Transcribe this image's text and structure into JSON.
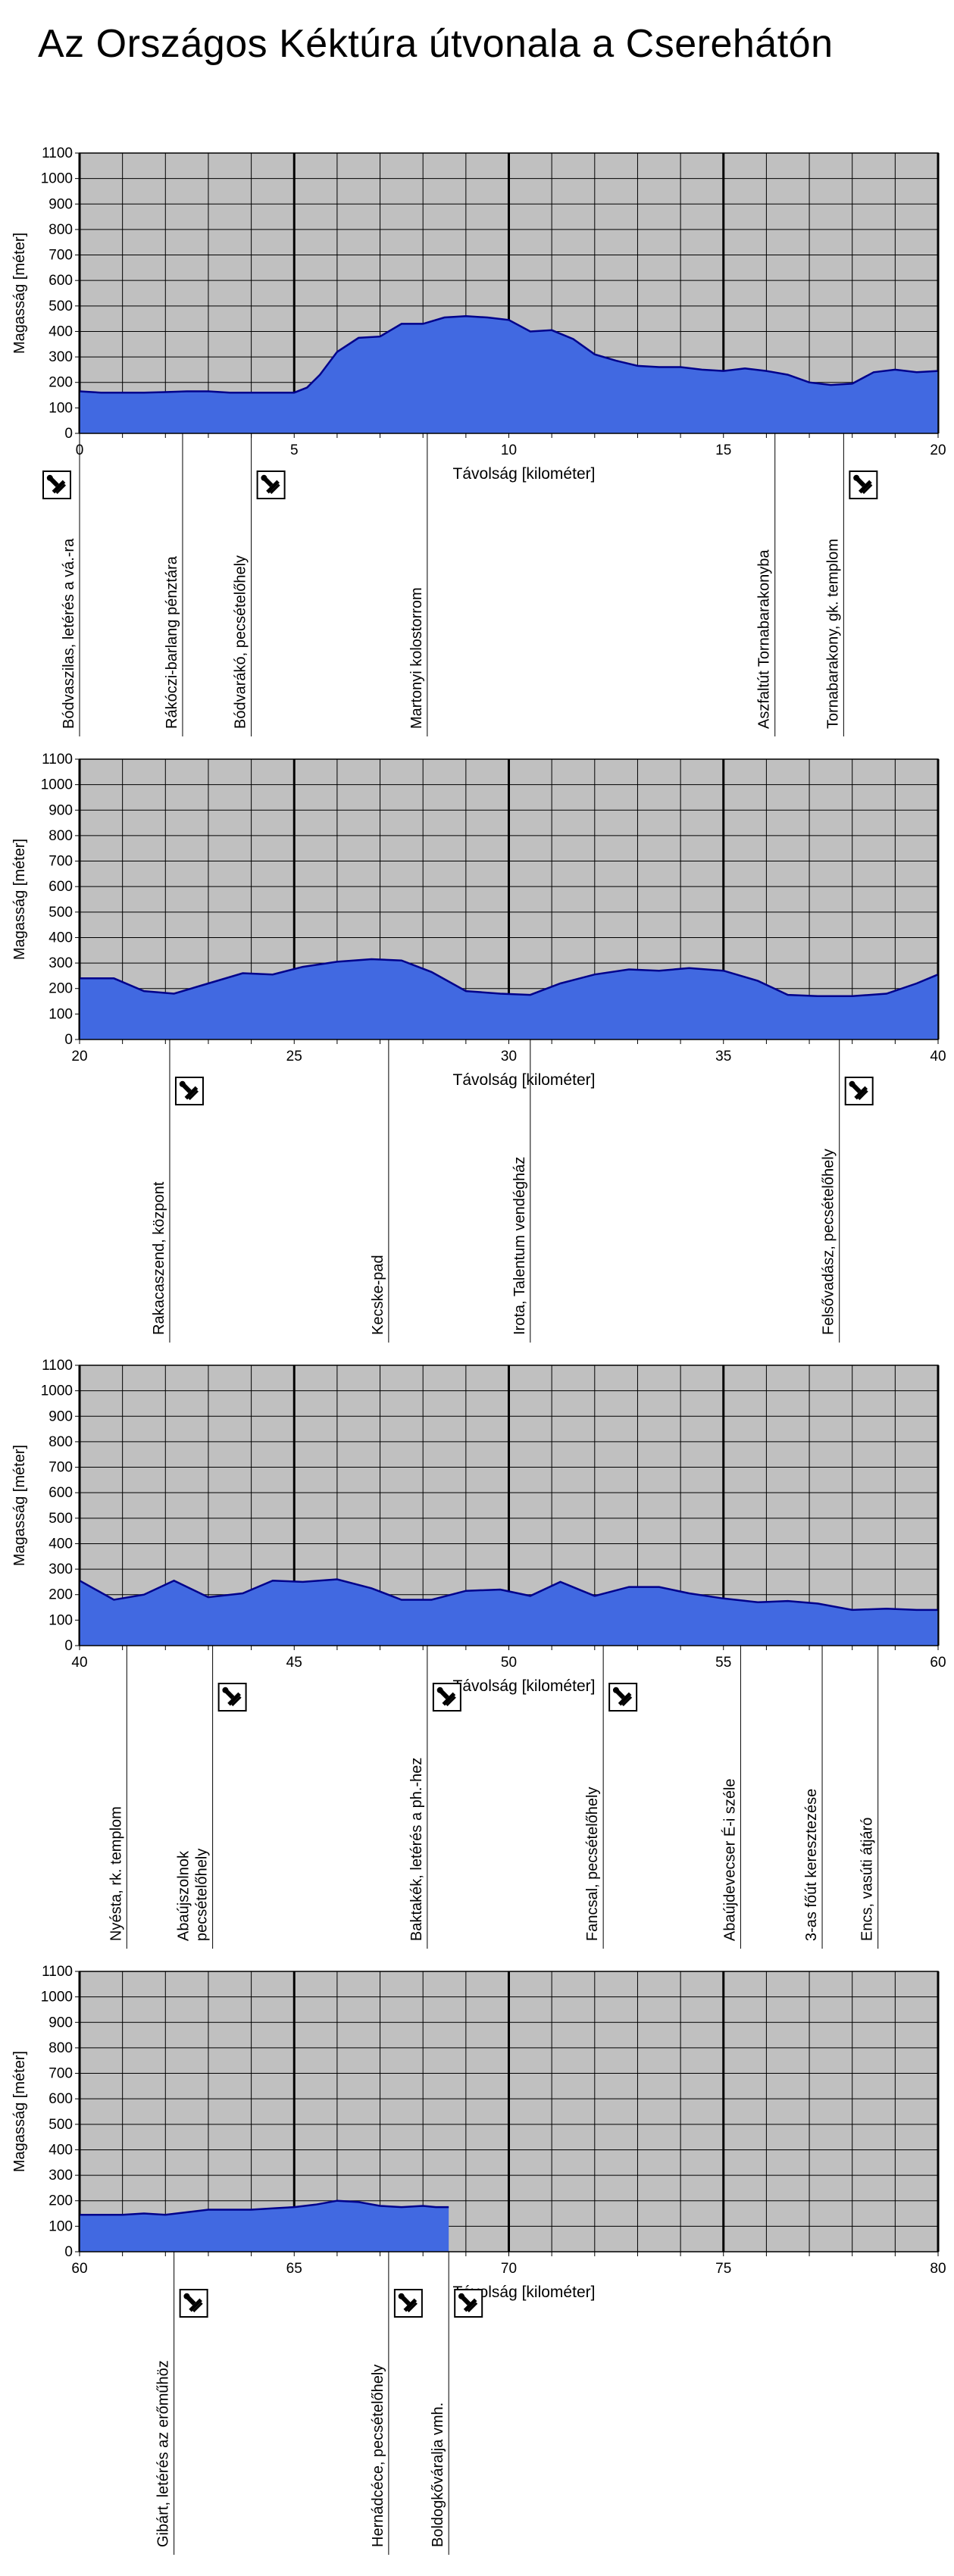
{
  "title": "Az Országos Kéktúra útvonala a Cserehátón",
  "colors": {
    "plot_bg": "#c0c0c0",
    "area_fill": "#4169e1",
    "area_line": "#00008b",
    "grid": "#000000",
    "stamp_border": "#000000"
  },
  "icons": {
    "stamp": "stamp-icon"
  },
  "chart_data": [
    {
      "type": "area",
      "xlabel": "Távolság [kilométer]",
      "ylabel": "Magasság [méter]",
      "xlim": [
        0,
        20
      ],
      "ylim": [
        0,
        1100
      ],
      "xticks": [
        "0",
        "5",
        "10",
        "15",
        "20"
      ],
      "yticks": [
        "0",
        "100",
        "200",
        "300",
        "400",
        "500",
        "600",
        "700",
        "800",
        "900",
        "1000",
        "1100"
      ],
      "grid": true,
      "x": [
        0,
        0.5,
        1,
        1.5,
        2,
        2.5,
        3,
        3.5,
        4,
        4.5,
        5,
        5.3,
        5.6,
        6,
        6.5,
        7,
        7.5,
        8,
        8.5,
        9,
        9.5,
        10,
        10.5,
        11,
        11.5,
        12,
        12.5,
        13,
        13.5,
        14,
        14.5,
        15,
        15.5,
        16,
        16.5,
        17,
        17.5,
        18,
        18.5,
        19,
        19.5,
        20
      ],
      "y": [
        165,
        160,
        160,
        160,
        162,
        165,
        165,
        160,
        160,
        160,
        160,
        180,
        230,
        320,
        375,
        380,
        430,
        430,
        455,
        460,
        455,
        445,
        400,
        405,
        370,
        310,
        285,
        265,
        260,
        260,
        250,
        245,
        255,
        245,
        230,
        200,
        190,
        195,
        240,
        250,
        240,
        245
      ],
      "landmarks": [
        {
          "x": 0,
          "label": "Bódvaszilas, letérés a vá.-ra",
          "stamp": true
        },
        {
          "x": 2.4,
          "label": "Rákóczi-barlang pénztára",
          "stamp": false
        },
        {
          "x": 4,
          "label": "Bódvarákó, pecsételőhely",
          "stamp": true
        },
        {
          "x": 8.1,
          "label": "Martonyi kolostorrom",
          "stamp": false
        },
        {
          "x": 16.2,
          "label": "Aszfaltút Tornabarakonyba",
          "stamp": false
        },
        {
          "x": 17.8,
          "label": "Tornabarakony, gk. templom",
          "stamp": true
        }
      ]
    },
    {
      "type": "area",
      "xlabel": "Távolság [kilométer]",
      "ylabel": "Magasság [méter]",
      "xlim": [
        20,
        40
      ],
      "ylim": [
        0,
        1100
      ],
      "xticks": [
        "20",
        "25",
        "30",
        "35",
        "40"
      ],
      "yticks": [
        "0",
        "100",
        "200",
        "300",
        "400",
        "500",
        "600",
        "700",
        "800",
        "900",
        "1000",
        "1100"
      ],
      "grid": true,
      "x": [
        20,
        20.8,
        21.5,
        22.2,
        23,
        23.8,
        24.5,
        25.2,
        26,
        26.8,
        27.5,
        28.2,
        29,
        29.8,
        30.5,
        31.2,
        32,
        32.8,
        33.5,
        34.2,
        35,
        35.8,
        36.5,
        37.2,
        38,
        38.8,
        39.5,
        40
      ],
      "y": [
        240,
        240,
        190,
        180,
        220,
        260,
        255,
        285,
        305,
        315,
        310,
        265,
        190,
        180,
        175,
        220,
        255,
        275,
        270,
        280,
        270,
        230,
        175,
        170,
        170,
        180,
        220,
        255
      ],
      "landmarks": [
        {
          "x": 22.1,
          "label": "Rakacaszend, központ",
          "stamp": true
        },
        {
          "x": 27.2,
          "label": "Kecske-pad",
          "stamp": false
        },
        {
          "x": 30.5,
          "label": "Irota, Talentum vendégház",
          "stamp": false
        },
        {
          "x": 37.7,
          "label": "Felsővadász, pecsételőhely",
          "stamp": true
        }
      ]
    },
    {
      "type": "area",
      "xlabel": "Távolság [kilométer]",
      "ylabel": "Magasság [méter]",
      "xlim": [
        40,
        60
      ],
      "ylim": [
        0,
        1100
      ],
      "xticks": [
        "40",
        "45",
        "50",
        "55",
        "60"
      ],
      "yticks": [
        "0",
        "100",
        "200",
        "300",
        "400",
        "500",
        "600",
        "700",
        "800",
        "900",
        "1000",
        "1100"
      ],
      "grid": true,
      "x": [
        40,
        40.8,
        41.5,
        42.2,
        43,
        43.8,
        44.5,
        45.2,
        46,
        46.8,
        47.5,
        48.2,
        49,
        49.8,
        50.5,
        51.2,
        52,
        52.8,
        53.5,
        54.2,
        55,
        55.8,
        56.5,
        57.2,
        58,
        58.8,
        59.5,
        60
      ],
      "y": [
        255,
        180,
        200,
        255,
        190,
        205,
        255,
        250,
        260,
        225,
        180,
        180,
        215,
        220,
        195,
        250,
        195,
        230,
        230,
        205,
        185,
        170,
        175,
        165,
        140,
        145,
        140,
        140
      ],
      "landmarks": [
        {
          "x": 41.1,
          "label": "Nyésta, rk. templom",
          "stamp": false
        },
        {
          "x": 43.1,
          "label": "Abaújszolnok\npecsételőhely",
          "stamp": true
        },
        {
          "x": 48.1,
          "label": "Baktakék, letérés a ph.-hez",
          "stamp": true
        },
        {
          "x": 52.2,
          "label": "Fancsal, pecsételőhely",
          "stamp": true
        },
        {
          "x": 55.4,
          "label": "Abaújdevecser É-i széle",
          "stamp": false
        },
        {
          "x": 57.3,
          "label": "3-as főút keresztezése",
          "stamp": false
        },
        {
          "x": 58.6,
          "label": "Encs, vasúti átjáró",
          "stamp": false
        }
      ]
    },
    {
      "type": "area",
      "xlabel": "Távolság [kilométer]",
      "ylabel": "Magasság [méter]",
      "xlim": [
        60,
        80
      ],
      "ylim": [
        0,
        1100
      ],
      "xticks": [
        "60",
        "65",
        "70",
        "75",
        "80"
      ],
      "yticks": [
        "0",
        "100",
        "200",
        "300",
        "400",
        "500",
        "600",
        "700",
        "800",
        "900",
        "1000",
        "1100"
      ],
      "grid": true,
      "x": [
        60,
        60.5,
        61,
        61.5,
        62,
        62.5,
        63,
        63.5,
        64,
        64.5,
        65,
        65.5,
        66,
        66.5,
        67,
        67.5,
        68,
        68.3,
        68.6
      ],
      "y": [
        145,
        145,
        145,
        150,
        145,
        155,
        165,
        165,
        165,
        170,
        175,
        185,
        200,
        195,
        180,
        175,
        180,
        175,
        175
      ],
      "landmarks": [
        {
          "x": 62.2,
          "label": "Gibárt, letérés az erőműhöz",
          "stamp": true
        },
        {
          "x": 67.2,
          "label": "Hernádcéce, pecsételőhely",
          "stamp": true
        },
        {
          "x": 68.6,
          "label": "Boldogkőváralja vmh.",
          "stamp": true
        }
      ]
    }
  ]
}
